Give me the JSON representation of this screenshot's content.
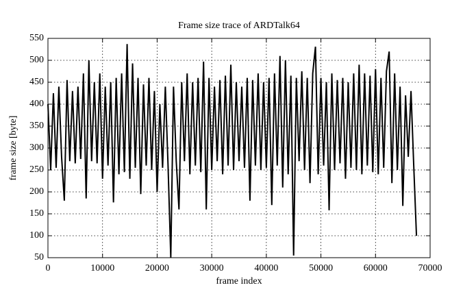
{
  "chart_data": {
    "type": "line",
    "title": "Frame size trace of ARDTalk64",
    "x_label": "frame index",
    "y_label": "frame size [byte]",
    "x": [
      0,
      500,
      1000,
      1500,
      2000,
      2500,
      3000,
      3500,
      4000,
      4500,
      5000,
      5500,
      6000,
      6500,
      7000,
      7500,
      8000,
      8500,
      9000,
      9500,
      10000,
      10500,
      11000,
      11500,
      12000,
      12500,
      13000,
      13500,
      14000,
      14500,
      15000,
      15500,
      16000,
      16500,
      17000,
      17500,
      18000,
      18500,
      19000,
      19500,
      20000,
      20500,
      21000,
      21500,
      22000,
      22500,
      23000,
      23500,
      24000,
      24500,
      25000,
      25500,
      26000,
      26500,
      27000,
      27500,
      28000,
      28500,
      29000,
      29500,
      30000,
      30500,
      31000,
      31500,
      32000,
      32500,
      33000,
      33500,
      34000,
      34500,
      35000,
      35500,
      36000,
      36500,
      37000,
      37500,
      38000,
      38500,
      39000,
      39500,
      40000,
      40500,
      41000,
      41500,
      42000,
      42500,
      43000,
      43500,
      44000,
      44500,
      45000,
      45500,
      46000,
      46500,
      47000,
      47500,
      48000,
      48500,
      49000,
      49500,
      50000,
      50500,
      51000,
      51500,
      52000,
      52500,
      53000,
      53500,
      54000,
      54500,
      55000,
      55500,
      56000,
      56500,
      57000,
      57500,
      58000,
      58500,
      59000,
      59500,
      60000,
      60500,
      61000,
      61500,
      62000,
      62500,
      63000,
      63500,
      64000,
      64500,
      65000,
      65500,
      66000,
      66500,
      67000,
      67500
    ],
    "values": [
      400,
      250,
      425,
      255,
      440,
      280,
      180,
      455,
      270,
      430,
      265,
      440,
      275,
      470,
      185,
      500,
      270,
      450,
      265,
      470,
      230,
      440,
      260,
      450,
      176,
      460,
      240,
      470,
      245,
      537,
      230,
      493,
      255,
      460,
      195,
      445,
      260,
      460,
      250,
      430,
      200,
      400,
      255,
      440,
      260,
      50,
      440,
      270,
      160,
      450,
      270,
      470,
      240,
      450,
      260,
      460,
      245,
      497,
      160,
      460,
      250,
      440,
      270,
      455,
      240,
      465,
      260,
      490,
      250,
      450,
      270,
      440,
      255,
      460,
      180,
      455,
      260,
      470,
      250,
      450,
      255,
      460,
      170,
      470,
      260,
      510,
      210,
      500,
      240,
      465,
      55,
      460,
      270,
      475,
      250,
      460,
      220,
      470,
      531,
      240,
      460,
      260,
      450,
      158,
      470,
      250,
      455,
      265,
      460,
      230,
      450,
      255,
      470,
      250,
      490,
      240,
      470,
      260,
      465,
      245,
      480,
      240,
      460,
      255,
      475,
      520,
      220,
      470,
      250,
      440,
      168,
      420,
      280,
      430,
      260,
      100
    ],
    "color": "#000000",
    "xlim": [
      0,
      70000
    ],
    "xticks": [
      0,
      10000,
      20000,
      30000,
      40000,
      50000,
      60000,
      70000
    ],
    "ylim": [
      50,
      550
    ],
    "yticks": [
      50,
      100,
      150,
      200,
      250,
      300,
      350,
      400,
      450,
      500,
      550
    ],
    "grid": true
  }
}
